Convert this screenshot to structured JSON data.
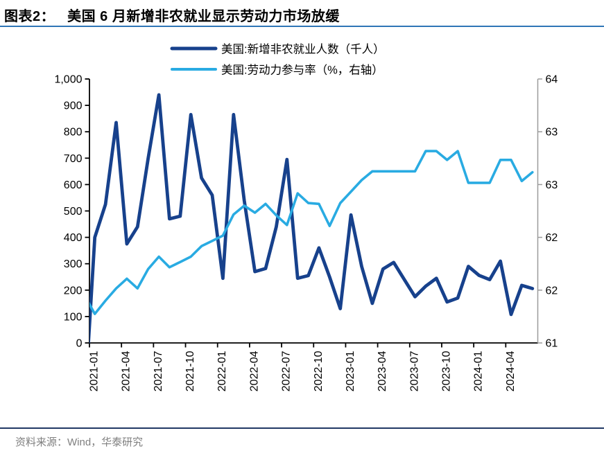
{
  "header": {
    "tag": "图表2：",
    "title": "美国 6 月新增非农就业显示劳动力市场放缓"
  },
  "footer": {
    "source": "资料来源：Wind，华泰研究"
  },
  "colors": {
    "payrolls_line": "#17418C",
    "participation_line": "#29ABE2",
    "title_rule": "#2E75B6",
    "footer_rule": "#203864",
    "axis": "#000000",
    "right_axis": "#9B9B9B",
    "label_text": "#000000",
    "source_text": "#7F7F7F"
  },
  "chart_data": {
    "type": "line",
    "title": "",
    "x": [
      "2020-12",
      "2021-01",
      "2021-02",
      "2021-03",
      "2021-04",
      "2021-05",
      "2021-06",
      "2021-07",
      "2021-08",
      "2021-09",
      "2021-10",
      "2021-11",
      "2021-12",
      "2022-01",
      "2022-02",
      "2022-03",
      "2022-04",
      "2022-05",
      "2022-06",
      "2022-07",
      "2022-08",
      "2022-09",
      "2022-10",
      "2022-11",
      "2022-12",
      "2023-01",
      "2023-02",
      "2023-03",
      "2023-04",
      "2023-05",
      "2023-06",
      "2023-07",
      "2023-08",
      "2023-09",
      "2023-10",
      "2023-11",
      "2023-12",
      "2024-01",
      "2024-02",
      "2024-03",
      "2024-04",
      "2024-05",
      "2024-06"
    ],
    "x_tick_labels": [
      "2021-01",
      "2021-04",
      "2021-07",
      "2021-10",
      "2022-01",
      "2022-04",
      "2022-07",
      "2022-10",
      "2023-01",
      "2023-04",
      "2023-07",
      "2023-10",
      "2024-01",
      "2024-04"
    ],
    "series": [
      {
        "name": "美国:新增非农就业人数（千人）",
        "axis": "left",
        "color": "#17418C",
        "values": [
          -270,
          400,
          525,
          835,
          375,
          440,
          700,
          940,
          470,
          480,
          865,
          625,
          560,
          245,
          865,
          540,
          270,
          282,
          440,
          695,
          245,
          255,
          360,
          250,
          130,
          485,
          290,
          150,
          280,
          305,
          240,
          175,
          215,
          245,
          155,
          170,
          290,
          256,
          240,
          310,
          108,
          218,
          206
        ]
      },
      {
        "name": "美国:劳动力参与率（%，右轴）",
        "axis": "right",
        "color": "#29ABE2",
        "values": [
          61.55,
          61.33,
          61.48,
          61.62,
          61.73,
          61.62,
          61.84,
          61.98,
          61.86,
          61.92,
          61.98,
          62.1,
          62.16,
          62.22,
          62.46,
          62.56,
          62.48,
          62.58,
          62.45,
          62.34,
          62.7,
          62.59,
          62.58,
          62.33,
          62.59,
          62.72,
          62.85,
          62.95,
          62.95,
          62.95,
          62.95,
          62.95,
          63.18,
          63.18,
          63.08,
          63.18,
          62.82,
          62.82,
          62.82,
          63.08,
          63.08,
          62.84,
          62.94
        ]
      }
    ],
    "left_axis": {
      "min": 0,
      "max": 1000,
      "tick_step": 100,
      "tick_labels": [
        "0",
        "100",
        "200",
        "300",
        "400",
        "500",
        "600",
        "700",
        "800",
        "900",
        "1,000"
      ]
    },
    "right_axis": {
      "min": 61,
      "max": 64,
      "tick_values": [
        61,
        61.6,
        62.2,
        62.8,
        63.4,
        64
      ],
      "tick_labels": [
        "61",
        "62",
        "62",
        "63",
        "63",
        "64"
      ]
    },
    "legend_position": "top",
    "grid": false
  }
}
